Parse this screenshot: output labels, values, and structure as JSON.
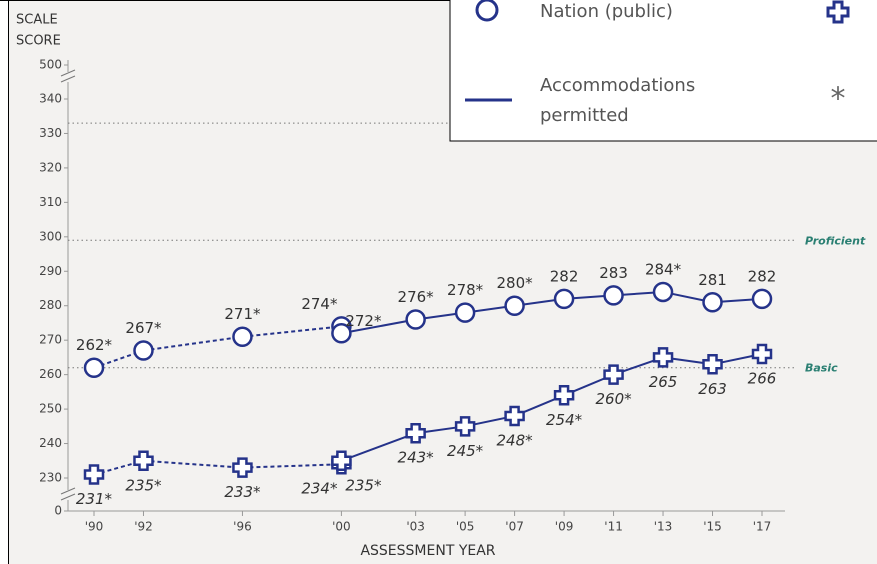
{
  "chart_data": {
    "type": "line",
    "y_label": [
      "SCALE",
      "SCORE"
    ],
    "x_label": "ASSESSMENT YEAR",
    "x": [
      1990,
      1992,
      1996,
      2000,
      2000,
      2003,
      2005,
      2007,
      2009,
      2011,
      2013,
      2015,
      2017
    ],
    "dashed": [
      true,
      true,
      true,
      true,
      false,
      false,
      false,
      false,
      false,
      false,
      false,
      false,
      false
    ],
    "series": [
      {
        "name": "Nation (public)",
        "marker": "circle",
        "color": "#25338a",
        "values": [
          262,
          267,
          271,
          274,
          272,
          276,
          278,
          280,
          282,
          283,
          284,
          281,
          282
        ],
        "value_labels": [
          "262*",
          "267*",
          "271*",
          "274*",
          "272*",
          "276*",
          "278*",
          "280*",
          "282",
          "283",
          "284*",
          "281",
          "282"
        ]
      },
      {
        "marker": "cross",
        "color": "#25338a",
        "values": [
          231,
          235,
          233,
          234,
          235,
          243,
          245,
          248,
          254,
          260,
          265,
          263,
          266
        ],
        "value_labels": [
          "231*",
          "235*",
          "233*",
          "234*",
          "235*",
          "243*",
          "245*",
          "248*",
          "254*",
          "260*",
          "265",
          "263",
          "266"
        ]
      }
    ],
    "xlim": [
      1988,
      2018
    ],
    "xticks": [
      {
        "value": 1990,
        "label": "'90"
      },
      {
        "value": 1992,
        "label": "'92"
      },
      {
        "value": 1996,
        "label": "'96"
      },
      {
        "value": 2000,
        "label": "'00"
      },
      {
        "value": 2003,
        "label": "'03"
      },
      {
        "value": 2005,
        "label": "'05"
      },
      {
        "value": 2007,
        "label": "'07"
      },
      {
        "value": 2009,
        "label": "'09"
      },
      {
        "value": 2011,
        "label": "'11"
      },
      {
        "value": 2013,
        "label": "'13"
      },
      {
        "value": 2015,
        "label": "'15"
      },
      {
        "value": 2017,
        "label": "'17"
      }
    ],
    "ylim": [
      0,
      500
    ],
    "yticks": [
      0,
      230,
      240,
      250,
      260,
      270,
      280,
      290,
      300,
      310,
      320,
      330,
      340,
      500
    ],
    "reference_lines": [
      {
        "value": 333
      },
      {
        "value": 299,
        "label": "Proficient"
      },
      {
        "value": 262,
        "label": "Basic"
      }
    ],
    "legend": {
      "items": [
        {
          "label": "Nation (public)"
        },
        {
          "label": "Accommodations permitted"
        }
      ],
      "asterisk": "*"
    }
  }
}
